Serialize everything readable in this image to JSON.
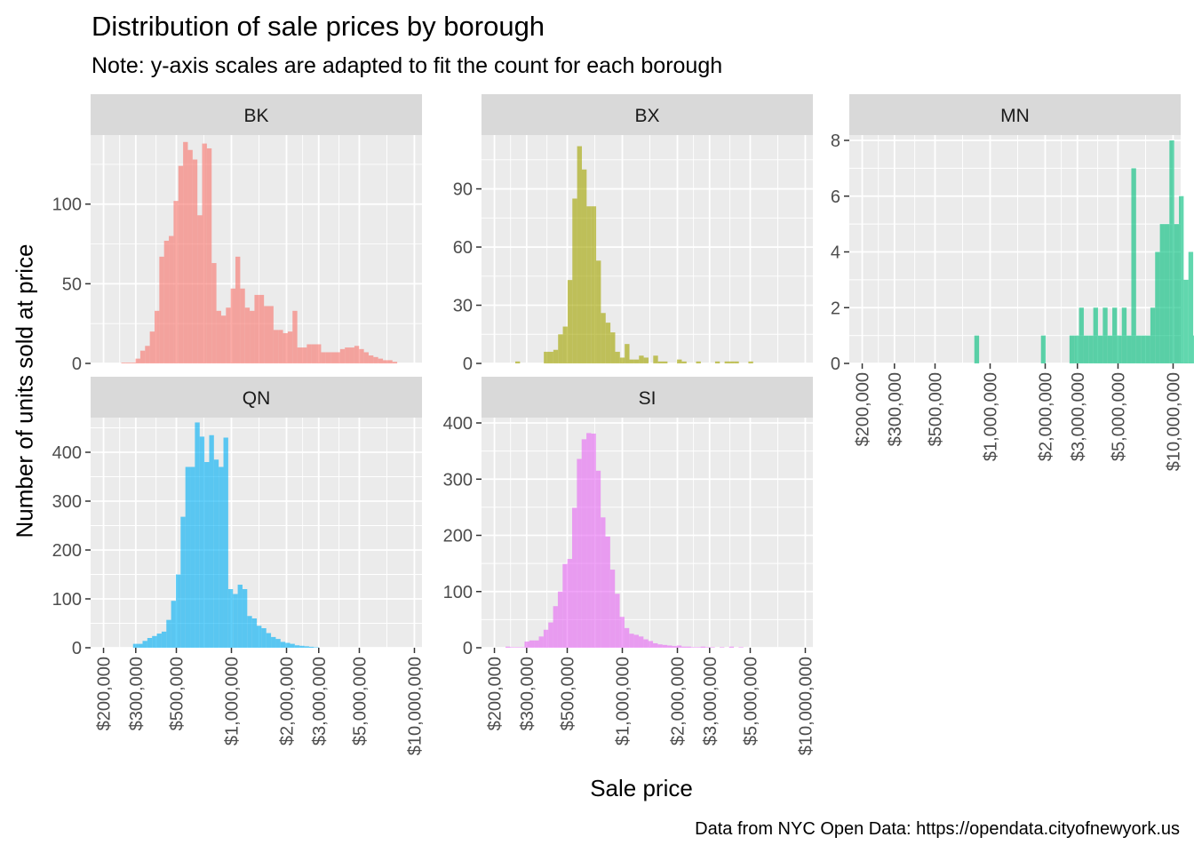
{
  "title": "Distribution of sale prices by borough",
  "subtitle": "Note: y-axis scales are adapted to fit the count for each borough",
  "caption": "Data from NYC Open Data: https://opendata.cityofnewyork.us",
  "xlabel": "Sale price",
  "ylabel": "Number of units sold at price",
  "colors": {
    "BK": "#F8766D",
    "BX": "#A3A500",
    "MN": "#00BF7D",
    "QN": "#00B0F6",
    "SI": "#E76BF3",
    "panel_bg": "#EBEBEB",
    "strip_bg": "#D9D9D9",
    "grid": "#FFFFFF"
  },
  "chart_data": {
    "type": "bar",
    "subtype": "faceted histogram",
    "x_scale": "log10",
    "xlim": [
      170000,
      11000000
    ],
    "x_ticks": [
      200000,
      300000,
      500000,
      1000000,
      2000000,
      3000000,
      5000000,
      10000000
    ],
    "x_tick_labels": [
      "$200,000",
      "$300,000",
      "$500,000",
      "$1,000,000",
      "$2,000,000",
      "$3,000,000",
      "$5,000,000",
      "$10,000,000"
    ],
    "bin_width_log10": 0.026,
    "panels": [
      {
        "name": "BK",
        "ylim": [
          0,
          140
        ],
        "y_ticks": [
          0,
          50,
          100
        ],
        "bin_start": 250000,
        "counts": [
          0.5,
          0.5,
          0.5,
          3,
          8,
          11,
          20,
          33,
          67,
          77,
          80,
          102,
          124,
          139,
          134,
          128,
          93,
          138,
          135,
          63,
          33,
          30,
          35,
          47,
          67,
          47,
          35,
          33,
          43,
          43,
          36,
          36,
          21,
          21,
          19,
          20,
          33,
          10,
          10,
          12,
          12,
          12,
          7,
          7,
          7,
          7,
          9,
          10,
          10,
          11,
          9,
          7,
          5,
          4,
          3,
          2,
          2,
          1
        ]
      },
      {
        "name": "BX",
        "ylim": [
          0,
          115
        ],
        "y_ticks": [
          0,
          30,
          60,
          90
        ],
        "bin_start": 260000,
        "counts": [
          1,
          0,
          0,
          0,
          0,
          0,
          6,
          6,
          7,
          15,
          19,
          43,
          85,
          112,
          100,
          81,
          81,
          53,
          26,
          21,
          16,
          6,
          3,
          10,
          2,
          2,
          4,
          3,
          0,
          4,
          1,
          1,
          0,
          0,
          2,
          1,
          0,
          0,
          1,
          0,
          0,
          0,
          1,
          0,
          1,
          1,
          1,
          0,
          0,
          1,
          0,
          0
        ]
      },
      {
        "name": "MN",
        "ylim": [
          0,
          8
        ],
        "y_ticks": [
          0,
          2,
          4,
          6,
          8
        ],
        "bin_start": 820000,
        "counts": [
          1,
          0,
          0,
          0,
          0,
          0,
          0,
          0,
          0,
          0,
          0,
          0,
          0,
          0,
          1,
          0,
          0,
          0,
          0,
          0,
          1,
          1,
          2,
          1,
          1,
          2,
          1,
          2,
          1,
          2,
          1,
          2,
          1,
          7,
          1,
          1,
          1,
          2,
          4,
          5,
          5,
          8,
          5,
          6,
          3,
          4,
          1,
          3
        ]
      },
      {
        "name": "QN",
        "ylim": [
          0,
          460
        ],
        "y_ticks": [
          0,
          100,
          200,
          300,
          400
        ],
        "bin_start": 290000,
        "counts": [
          8,
          8,
          14,
          20,
          24,
          29,
          33,
          57,
          96,
          150,
          268,
          370,
          370,
          461,
          432,
          380,
          435,
          385,
          370,
          430,
          120,
          110,
          129,
          120,
          65,
          60,
          45,
          40,
          30,
          22,
          18,
          12,
          10,
          8,
          5,
          4,
          3,
          2,
          1
        ]
      },
      {
        "name": "SI",
        "ylim": [
          0,
          400
        ],
        "y_ticks": [
          0,
          100,
          200,
          300,
          400
        ],
        "bin_start": 230000,
        "counts": [
          2,
          1,
          1,
          1,
          11,
          13,
          13,
          20,
          32,
          45,
          74,
          100,
          149,
          158,
          249,
          336,
          371,
          382,
          381,
          315,
          232,
          198,
          139,
          96,
          55,
          35,
          25,
          23,
          20,
          15,
          12,
          8,
          6,
          5,
          4,
          3,
          4,
          2,
          2,
          1,
          1,
          2,
          1,
          1,
          0,
          1,
          0,
          2,
          0,
          1,
          0,
          0,
          0,
          0
        ]
      }
    ]
  }
}
